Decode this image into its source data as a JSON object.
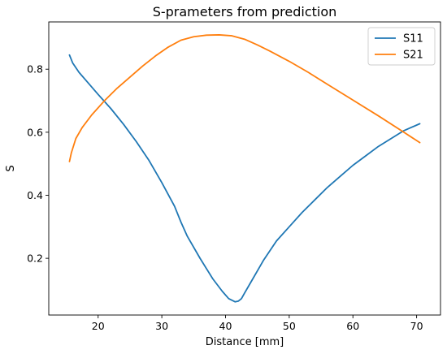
{
  "chart_data": {
    "type": "line",
    "title": "S-prameters from prediction",
    "xlabel": "Distance [mm]",
    "ylabel": "S",
    "xlim": [
      12.25,
      73.75
    ],
    "ylim": [
      0.02,
      0.95
    ],
    "xticks": [
      20,
      30,
      40,
      50,
      60,
      70
    ],
    "yticks": [
      0.2,
      0.4,
      0.6,
      0.8
    ],
    "grid": false,
    "legend_position": "top-right",
    "series": [
      {
        "name": "S11",
        "color": "#1f77b4",
        "x": [
          15.5,
          16.0,
          17.0,
          18.5,
          20.0,
          22.0,
          24.0,
          26.0,
          28.0,
          30.0,
          32.0,
          33.0,
          34.0,
          36.0,
          38.0,
          39.5,
          40.5,
          41.5,
          42.0,
          42.5,
          43.0,
          44.0,
          45.0,
          46.0,
          48.0,
          50.0,
          52.0,
          54.0,
          56.0,
          58.0,
          60.0,
          62.0,
          64.0,
          66.0,
          68.0,
          70.5
        ],
        "y": [
          0.845,
          0.82,
          0.79,
          0.755,
          0.72,
          0.675,
          0.625,
          0.57,
          0.51,
          0.44,
          0.365,
          0.315,
          0.27,
          0.2,
          0.135,
          0.095,
          0.072,
          0.062,
          0.064,
          0.072,
          0.09,
          0.125,
          0.16,
          0.195,
          0.255,
          0.3,
          0.345,
          0.385,
          0.425,
          0.46,
          0.495,
          0.525,
          0.555,
          0.58,
          0.605,
          0.627
        ]
      },
      {
        "name": "S21",
        "color": "#ff7f0e",
        "x": [
          15.5,
          15.8,
          16.5,
          17.5,
          19.0,
          21.0,
          23.0,
          25.0,
          27.0,
          29.0,
          31.0,
          33.0,
          35.0,
          37.0,
          39.0,
          41.0,
          43.0,
          45.0,
          47.0,
          50.0,
          53.0,
          56.0,
          60.0,
          64.0,
          68.0,
          70.5
        ],
        "y": [
          0.507,
          0.535,
          0.58,
          0.615,
          0.655,
          0.7,
          0.74,
          0.775,
          0.81,
          0.842,
          0.87,
          0.892,
          0.903,
          0.908,
          0.909,
          0.906,
          0.895,
          0.877,
          0.857,
          0.825,
          0.79,
          0.752,
          0.702,
          0.652,
          0.6,
          0.567
        ]
      }
    ]
  }
}
